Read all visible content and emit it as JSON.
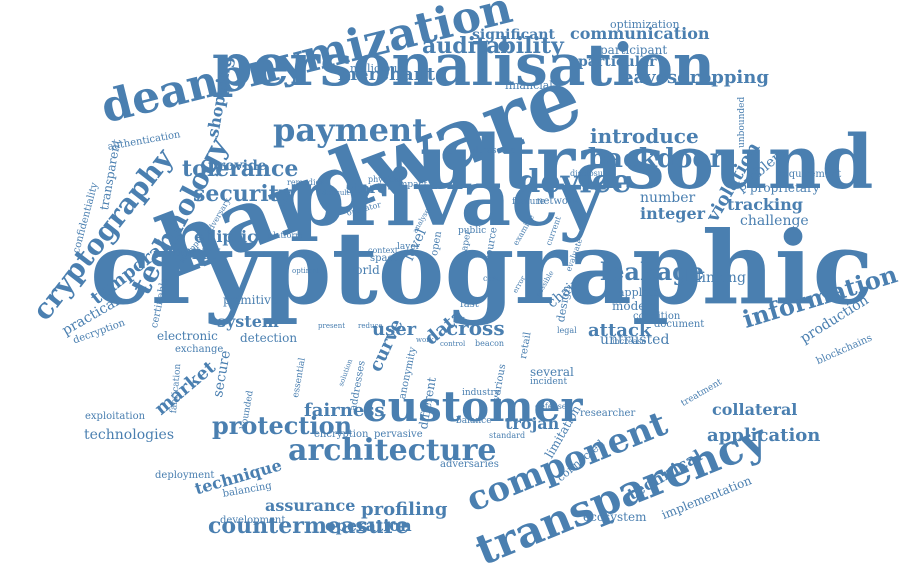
{
  "colors": {
    "word": "#4a7fb0",
    "background": "#ffffff"
  },
  "words": {
    "cryptographic": "cryptographic",
    "hardware": "hardware",
    "privacy": "privacy",
    "ultrasound": "ultrasound",
    "personalisation": "personalisation",
    "deanonymization": "deanonymization",
    "customer": "customer",
    "transparency": "transparency",
    "component": "component",
    "payment": "payment",
    "architecture": "architecture",
    "device": "device",
    "information": "information",
    "cryptography": "cryptography",
    "technology": "technology",
    "auditability": "auditability",
    "backdoor": "backdoor",
    "leakage": "leakage",
    "protection": "protection",
    "countermeasure": "countermeasure",
    "security": "security",
    "tolerance": "tolerance",
    "introduce": "introduce",
    "eavesdropping": "eavesdropping",
    "merchant": "merchant",
    "communication": "communication",
    "significant": "significant",
    "particular": "particular",
    "participant": "participant",
    "optimization": "optimization",
    "financial": "financial",
    "malicious": "malicious",
    "authentication": "authentication",
    "shopping": "shopping",
    "transparent": "transparent",
    "confidentiality": "confidentiality",
    "ultrasonic": "ultrasonic",
    "provide": "provide",
    "elliptic": "elliptic",
    "snappy": "snappy",
    "temporal": "temporal",
    "practical": "practical",
    "store": "store",
    "tracking": "tracking",
    "violation": "violation",
    "problem": "problem",
    "proprietary": "proprietary",
    "requirement": "requirement",
    "unbounded": "unbounded",
    "integer": "integer",
    "challenge": "challenge",
    "number": "number",
    "attack": "attack",
    "linking": "linking",
    "production": "production",
    "blockchains": "blockchains",
    "system": "system",
    "primitive": "primitive",
    "electronic": "electronic",
    "detection": "detection",
    "exchange": "exchange",
    "certifiable": "certifiable",
    "decryption": "decryption",
    "secure": "secure",
    "market": "market",
    "fairness": "fairness",
    "cross": "cross",
    "user": "user",
    "data": "data",
    "curve": "curve",
    "level": "level",
    "world": "world",
    "space": "space",
    "untrusted": "untrusted",
    "collateral": "collateral",
    "application": "application",
    "technical": "technical",
    "implementation": "implementation",
    "ecosystem": "ecosystem",
    "technologies": "technologies",
    "exploitation": "exploitation",
    "deployment": "deployment",
    "technique": "technique",
    "balancing": "balancing",
    "development": "development",
    "assurance": "assurance",
    "profiling": "profiling",
    "operation": "operation",
    "trojan": "trojan",
    "encryption": "encryption",
    "pervasive": "pervasive",
    "adversaries": "adversaries",
    "limitation": "limitation",
    "connected": "connected",
    "researcher": "researcher",
    "several": "several",
    "incident": "incident",
    "modern": "modern",
    "condition": "condition",
    "document": "document",
    "increase": "increase",
    "treatment": "treatment",
    "applets": "applets",
    "fabrication": "fabrication",
    "bounded": "bounded",
    "essential": "essential",
    "addresses": "addresses",
    "anonymity": "anonymity",
    "different": "different",
    "industry": "industry",
    "various": "various",
    "balance": "balance",
    "standard": "standard",
    "retail": "retail",
    "legal": "legal",
    "design": "design",
    "chain": "chain",
    "fast": "fast",
    "network": "network",
    "feature": "feature",
    "disclosure": "disclosure",
    "examine": "examine",
    "public": "public",
    "paper": "paper",
    "source": "source",
    "case": "case",
    "evaluate": "evaluate",
    "current": "current",
    "defense": "defense",
    "beacon": "beacon",
    "control": "control",
    "work": "work",
    "reduce": "reduce",
    "present": "present",
    "optimal": "optimal",
    "platform": "platform",
    "adversary": "adversary",
    "swapper": "swapper",
    "remedies": "remedies",
    "difficult": "difficult",
    "physical": "physical",
    "impact": "impact",
    "operator": "operator",
    "context": "context",
    "layer": "layer",
    "analyse": "analyse",
    "open": "open",
    "solution": "solution",
    "possible": "possible",
    "error": "error"
  }
}
